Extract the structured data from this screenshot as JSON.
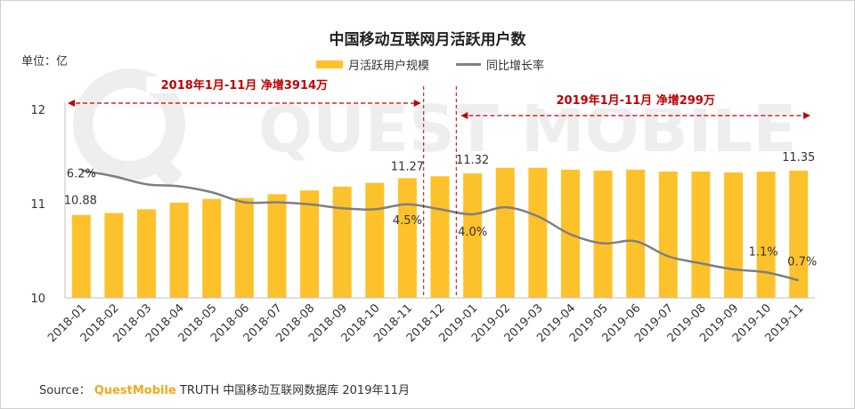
{
  "title": "中国移动互联网月活跃用户数",
  "unit_label": "单位：亿",
  "watermark": "QUEST MOBILE",
  "source": {
    "prefix": "Source：",
    "brand": "QuestMobile",
    "suffix": " TRUTH 中国移动互联网数据库 2019年11月"
  },
  "colors": {
    "bar": "#FDC22B",
    "line": "#7F7F7F",
    "annotation": "#C00000"
  },
  "chart_data": {
    "type": "bar",
    "title": "中国移动互联网月活跃用户数",
    "ylabel": "单位：亿",
    "ylim": [
      10,
      12
    ],
    "yticks": [
      "10",
      "11",
      "12"
    ],
    "categories": [
      "2018-01",
      "2018-02",
      "2018-03",
      "2018-04",
      "2018-05",
      "2018-06",
      "2018-07",
      "2018-08",
      "2018-09",
      "2018-10",
      "2018-11",
      "2018-12",
      "2019-01",
      "2019-02",
      "2019-03",
      "2019-04",
      "2019-05",
      "2019-06",
      "2019-07",
      "2019-08",
      "2019-09",
      "2019-10",
      "2019-11"
    ],
    "series": [
      {
        "name": "月活跃用户规模",
        "type": "bar",
        "values": [
          10.88,
          10.9,
          10.94,
          11.01,
          11.05,
          11.06,
          11.1,
          11.14,
          11.18,
          11.22,
          11.27,
          11.29,
          11.32,
          11.38,
          11.38,
          11.36,
          11.35,
          11.36,
          11.34,
          11.34,
          11.33,
          11.34,
          11.35
        ]
      },
      {
        "name": "同比增长率",
        "type": "line",
        "values": [
          6.2,
          5.9,
          5.5,
          5.4,
          5.1,
          4.6,
          4.6,
          4.5,
          4.3,
          4.25,
          4.5,
          4.25,
          4.0,
          4.35,
          3.9,
          3.0,
          2.55,
          2.65,
          1.9,
          1.55,
          1.25,
          1.1,
          0.7
        ]
      }
    ],
    "data_labels": [
      {
        "series": 0,
        "index": 0,
        "text": "10.88"
      },
      {
        "series": 0,
        "index": 10,
        "text": "11.27"
      },
      {
        "series": 0,
        "index": 12,
        "text": "11.32"
      },
      {
        "series": 0,
        "index": 22,
        "text": "11.35"
      },
      {
        "series": 1,
        "index": 0,
        "text": "6.2%"
      },
      {
        "series": 1,
        "index": 10,
        "text": "4.5%"
      },
      {
        "series": 1,
        "index": 12,
        "text": "4.0%"
      },
      {
        "series": 1,
        "index": 21,
        "text": "1.1%"
      },
      {
        "series": 1,
        "index": 22,
        "text": "0.7%"
      }
    ],
    "annotations": [
      {
        "text": "2018年1月-11月  净增3914万",
        "from": "2018-01",
        "to": "2018-11"
      },
      {
        "text": "2019年1月-11月  净增299万",
        "from": "2019-01",
        "to": "2019-11"
      }
    ],
    "legend": "top-center",
    "grid": false
  }
}
